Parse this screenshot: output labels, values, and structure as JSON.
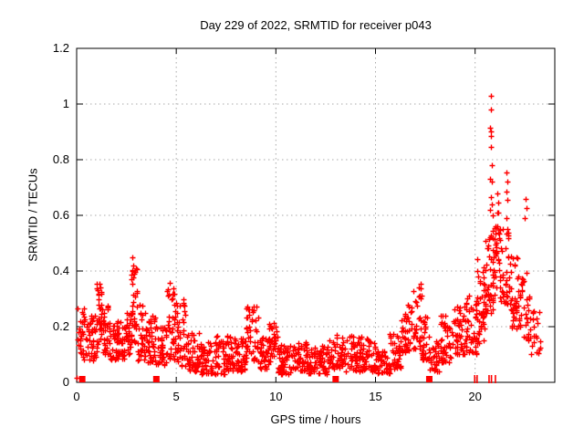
{
  "chart_data": {
    "type": "scatter",
    "title": "Day 229 of 2022, SRMTID for receiver p043",
    "xlabel": "GPS time / hours",
    "ylabel": "SRMTID / TECUs",
    "xlim": [
      0,
      24
    ],
    "ylim": [
      0,
      1.2
    ],
    "xticks": [
      0,
      5,
      10,
      15,
      20
    ],
    "xtick_labels": [
      "0",
      "5",
      "10",
      "15",
      "20"
    ],
    "yticks": [
      0,
      0.2,
      0.4,
      0.6,
      0.8,
      1,
      1.2
    ],
    "ytick_labels": [
      "0",
      "0.2",
      "0.4",
      "0.6",
      "0.8",
      "1",
      "1.2"
    ],
    "grid": "dotted, at every major tick",
    "legend": "none",
    "marker": "plus",
    "colors": {
      "marker": "#ff0000",
      "grid": "#a9a9a9",
      "axis": "#000000",
      "background": "#ffffff",
      "text": "#000000"
    },
    "seed": 20220229,
    "segments_format": "[hour_start, hour_end, y_min_TECU, y_max_TECU, n_points] — density envelope of the scatter band",
    "segments": [
      [
        0.02,
        0.5,
        0.08,
        0.27,
        35
      ],
      [
        0.5,
        1.0,
        0.08,
        0.24,
        40
      ],
      [
        1.0,
        1.3,
        0.12,
        0.36,
        35
      ],
      [
        1.3,
        1.6,
        0.1,
        0.28,
        30
      ],
      [
        1.6,
        2.4,
        0.08,
        0.22,
        65
      ],
      [
        2.4,
        2.7,
        0.1,
        0.28,
        25
      ],
      [
        2.7,
        3.05,
        0.14,
        0.48,
        40
      ],
      [
        3.05,
        3.5,
        0.08,
        0.3,
        35
      ],
      [
        3.5,
        4.0,
        0.07,
        0.24,
        40
      ],
      [
        4.0,
        4.5,
        0.06,
        0.2,
        40
      ],
      [
        4.5,
        5.0,
        0.08,
        0.37,
        45
      ],
      [
        5.0,
        5.5,
        0.06,
        0.3,
        40
      ],
      [
        5.5,
        6.2,
        0.04,
        0.18,
        55
      ],
      [
        6.2,
        7.0,
        0.03,
        0.15,
        60
      ],
      [
        7.0,
        7.8,
        0.03,
        0.17,
        60
      ],
      [
        7.8,
        8.5,
        0.04,
        0.16,
        55
      ],
      [
        8.5,
        9.1,
        0.08,
        0.28,
        45
      ],
      [
        9.1,
        9.6,
        0.05,
        0.16,
        35
      ],
      [
        9.6,
        10.1,
        0.07,
        0.22,
        40
      ],
      [
        10.1,
        11.0,
        0.03,
        0.14,
        65
      ],
      [
        11.0,
        11.6,
        0.04,
        0.16,
        45
      ],
      [
        11.6,
        12.6,
        0.03,
        0.13,
        70
      ],
      [
        12.6,
        13.5,
        0.05,
        0.18,
        60
      ],
      [
        13.5,
        14.3,
        0.04,
        0.17,
        55
      ],
      [
        14.3,
        15.0,
        0.04,
        0.16,
        50
      ],
      [
        15.0,
        15.7,
        0.03,
        0.12,
        50
      ],
      [
        15.7,
        16.3,
        0.05,
        0.18,
        45
      ],
      [
        16.3,
        16.8,
        0.1,
        0.28,
        40
      ],
      [
        16.8,
        17.3,
        0.12,
        0.36,
        40
      ],
      [
        17.3,
        17.7,
        0.08,
        0.25,
        30
      ],
      [
        17.7,
        18.2,
        0.04,
        0.15,
        35
      ],
      [
        18.2,
        18.9,
        0.07,
        0.24,
        50
      ],
      [
        18.9,
        19.5,
        0.1,
        0.28,
        45
      ],
      [
        19.5,
        20.1,
        0.1,
        0.32,
        50
      ],
      [
        20.1,
        20.5,
        0.14,
        0.45,
        40
      ],
      [
        20.5,
        20.9,
        0.25,
        0.55,
        45
      ],
      [
        20.9,
        21.3,
        0.3,
        0.62,
        40
      ],
      [
        21.3,
        21.8,
        0.28,
        0.6,
        40
      ],
      [
        21.8,
        22.3,
        0.18,
        0.45,
        40
      ],
      [
        22.3,
        22.8,
        0.15,
        0.4,
        30
      ],
      [
        22.8,
        23.3,
        0.1,
        0.3,
        20
      ]
    ],
    "outliers_format": "[hour, TECU] — individually visible high/edge points",
    "outliers": [
      [
        0.0,
        0.018
      ],
      [
        20.78,
        1.03
      ],
      [
        20.8,
        0.98
      ],
      [
        20.77,
        0.915
      ],
      [
        20.81,
        0.9
      ],
      [
        20.79,
        0.885
      ],
      [
        20.78,
        0.845
      ],
      [
        20.82,
        0.78
      ],
      [
        20.74,
        0.73
      ],
      [
        20.84,
        0.72
      ],
      [
        20.79,
        0.665
      ],
      [
        20.86,
        0.64
      ],
      [
        20.76,
        0.62
      ],
      [
        20.9,
        0.6
      ],
      [
        21.12,
        0.68
      ],
      [
        21.16,
        0.645
      ],
      [
        21.1,
        0.61
      ],
      [
        21.58,
        0.755
      ],
      [
        21.62,
        0.72
      ],
      [
        21.55,
        0.685
      ],
      [
        21.64,
        0.655
      ],
      [
        22.52,
        0.66
      ],
      [
        22.56,
        0.625
      ],
      [
        22.48,
        0.59
      ]
    ],
    "zero_square_hours": [
      0.28,
      4.0,
      13.0,
      17.7
    ],
    "zero_bar_hours": [
      19.98,
      20.1,
      20.7,
      20.82,
      21.02
    ]
  }
}
